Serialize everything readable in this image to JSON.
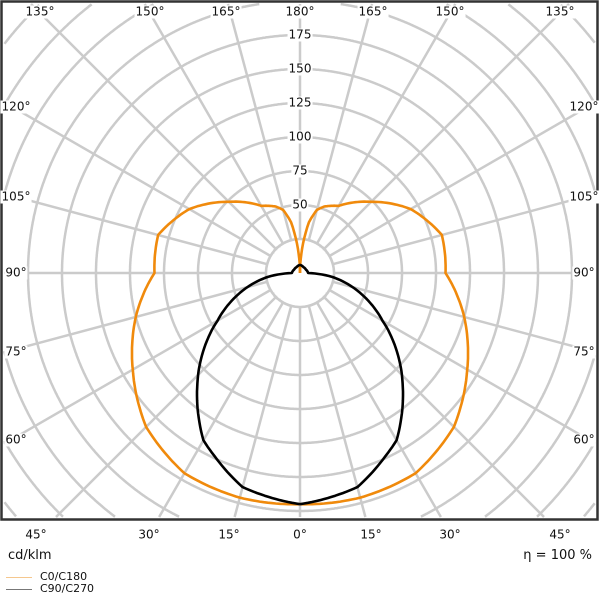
{
  "chart_data": {
    "type": "polar",
    "unit_label": "cd/klm",
    "efficiency_label": "η = 100 %",
    "radial_ticks": [
      50,
      75,
      100,
      125,
      150,
      175
    ],
    "radial_grid": [
      25,
      50,
      75,
      100,
      125,
      150,
      175,
      200,
      225,
      250,
      275,
      300
    ],
    "grid": true,
    "angle_labels": {
      "top": [
        "135°",
        "150°",
        "165°",
        "180°",
        "165°",
        "150°",
        "135°"
      ],
      "left": [
        "120°",
        "105°",
        "90°",
        "75°",
        "60°"
      ],
      "right": [
        "120°",
        "105°",
        "90°",
        "75°",
        "60°"
      ],
      "bottom": [
        "45°",
        "30°",
        "15°",
        "0°",
        "15°",
        "30°",
        "45°"
      ]
    },
    "legend_position": "bottom-left",
    "series": [
      {
        "name": "C0/C180",
        "color": "#f08a0c",
        "angles": [
          0,
          15,
          30,
          45,
          60,
          75,
          90,
          105,
          120,
          135,
          150,
          160,
          165,
          170,
          175,
          180
        ],
        "values": [
          170,
          171,
          170,
          160,
          142,
          125,
          107,
          108,
          94,
          74,
          57,
          52,
          48,
          38,
          18,
          0
        ]
      },
      {
        "name": "C90/C270",
        "color": "#000000",
        "angles": [
          0,
          15,
          24,
          30,
          42,
          45,
          58,
          60,
          72,
          83,
          90,
          120,
          150,
          180
        ],
        "values": [
          170,
          163,
          150,
          142,
          113,
          106,
          75,
          70,
          46,
          24,
          6,
          5,
          5,
          6
        ]
      }
    ]
  }
}
